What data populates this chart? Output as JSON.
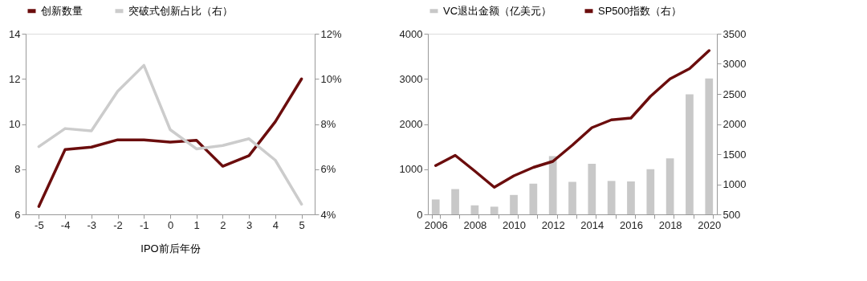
{
  "chart_data": [
    {
      "type": "line",
      "xlabel": "IPO前后年份",
      "categories": [
        "-5",
        "-4",
        "-3",
        "-2",
        "-1",
        "0",
        "1",
        "2",
        "3",
        "4",
        "5"
      ],
      "series": [
        {
          "name": "创新数量",
          "color": "#6b0d0d",
          "values": [
            6.35,
            8.87,
            8.98,
            9.3,
            9.3,
            9.2,
            9.28,
            8.13,
            8.6,
            10.1,
            12.0
          ]
        },
        {
          "name": "突破式创新占比（右）",
          "color": "#cccccc",
          "axis": "y2",
          "values": [
            7.0,
            7.8,
            7.7,
            9.45,
            10.6,
            7.75,
            6.9,
            7.05,
            7.35,
            6.4,
            4.45
          ]
        }
      ],
      "ylim": [
        6,
        14
      ],
      "yticks": [
        6,
        8,
        10,
        12,
        14
      ],
      "y2lim": [
        4,
        12
      ],
      "y2ticks": [
        {
          "value": 4,
          "label": "4%"
        },
        {
          "value": 6,
          "label": "6%"
        },
        {
          "value": 8,
          "label": "8%"
        },
        {
          "value": 10,
          "label": "10%"
        },
        {
          "value": 12,
          "label": "12%"
        }
      ],
      "grid": false,
      "legend": "top"
    },
    {
      "type": "bar",
      "categories": [
        "2006",
        null,
        "2008",
        null,
        "2010",
        null,
        "2012",
        null,
        "2014",
        null,
        "2016",
        null,
        "2018",
        null,
        "2020"
      ],
      "series": [
        {
          "name": "VC退出金额（亿美元）",
          "color": "#c8c8c8",
          "type": "bar",
          "values": [
            330,
            560,
            200,
            170,
            430,
            680,
            1290,
            720,
            1120,
            740,
            730,
            1000,
            1240,
            2660,
            3010
          ]
        },
        {
          "name": "SP500指数（右）",
          "color": "#6b0d0d",
          "type": "line",
          "axis": "y2",
          "values": [
            1310,
            1480,
            1220,
            950,
            1140,
            1280,
            1380,
            1650,
            1940,
            2070,
            2100,
            2460,
            2750,
            2920,
            3220
          ]
        }
      ],
      "ylim": [
        0,
        4000
      ],
      "yticks": [
        0,
        1000,
        2000,
        3000,
        4000
      ],
      "y2lim": [
        500,
        3500
      ],
      "y2ticks": [
        500,
        1000,
        1500,
        2000,
        2500,
        3000,
        3500
      ],
      "grid": false,
      "legend": "top"
    }
  ]
}
